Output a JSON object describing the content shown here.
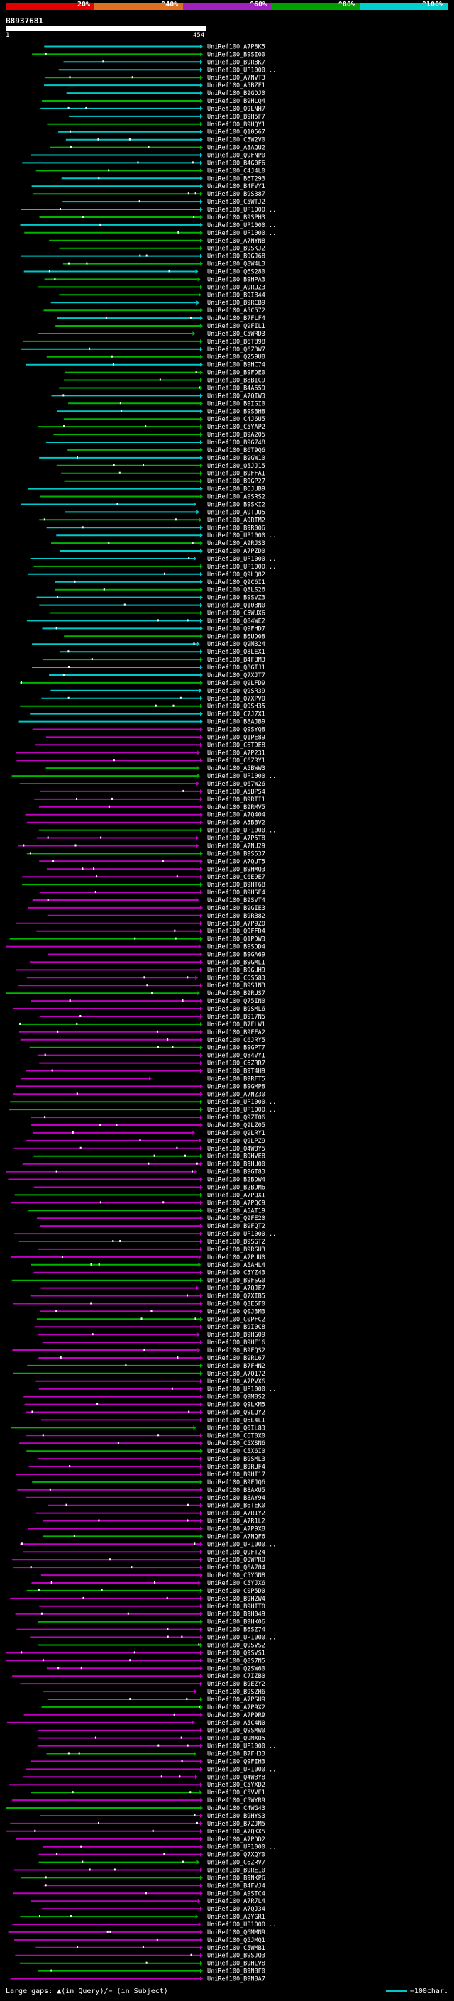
{
  "scale": {
    "labels": [
      "20%",
      "^40%",
      "^60%",
      "^80%",
      "^100%"
    ],
    "colors": [
      "#e00000",
      "#e07020",
      "#a020c0",
      "#00a000",
      "#00d0d0"
    ]
  },
  "query": {
    "id": "B8937681",
    "start": "1",
    "end": "454"
  },
  "footer": {
    "left": "Large gaps: ▲(in Query)/− (in Subject)",
    "right": "=100char."
  },
  "colors": {
    "cyan": "#00c8c8",
    "green": "#00b400",
    "magenta": "#c000c0",
    "background": "#000000",
    "text": "#ffffff"
  },
  "hits": [
    "UniRef100_A7P8K5",
    "UniRef100_B9SI00",
    "UniRef100_B9R8K7",
    "UniRef100_UP1000...",
    "UniRef100_A7NVT3",
    "UniRef100_A5BZF1",
    "UniRef100_B9GDJ0",
    "UniRef100_B9HLQ4",
    "UniRef100_Q9LNH7",
    "UniRef100_B9H5F7",
    "UniRef100_B9HQY1",
    "UniRef100_Q10567",
    "UniRef100_C5W2V0",
    "UniRef100_A3AQU2",
    "UniRef100_Q9FNP0",
    "UniRef100_B4G0F6",
    "UniRef100_C4J4L0",
    "UniRef100_B6T293",
    "UniRef100_B4FVY1",
    "UniRef100_B9S387",
    "UniRef100_C5WTJ2",
    "UniRef100_UP1000...",
    "UniRef100_B9SPH3",
    "UniRef100_UP1000...",
    "UniRef100_UP1000...",
    "UniRef100_A7NYN8",
    "UniRef100_B9SKJ2",
    "UniRef100_B9GJ68",
    "UniRef100_Q8W4L3",
    "UniRef100_Q6S280",
    "UniRef100_B9HPA3",
    "UniRef100_A9RUZ3",
    "UniRef100_B9IB44",
    "UniRef100_B9RCB9",
    "UniRef100_A5C572",
    "UniRef100_B7FLF4",
    "UniRef100_Q9FIL1",
    "UniRef100_C5WRD3",
    "UniRef100_B6T898",
    "UniRef100_Q6Z3W7",
    "UniRef100_Q259U8",
    "UniRef100_B9HC74",
    "UniRef100_B9FDE0",
    "UniRef100_B8BIC9",
    "UniRef100_B4A659",
    "UniRef100_A7QIW3",
    "UniRef100_B9IGI0",
    "UniRef100_B9SBH8",
    "UniRef100_C4J6U5",
    "UniRef100_C5YAP2",
    "UniRef100_B9A205",
    "UniRef100_B9G748",
    "UniRef100_B6T9Q6",
    "UniRef100_B9GW10",
    "UniRef100_Q5JJ15",
    "UniRef100_B9FFA1",
    "UniRef100_B9GP27",
    "UniRef100_B6JUB9",
    "UniRef100_A9SRS2",
    "UniRef100_B9SKI2",
    "UniRef100_A9TUU5",
    "UniRef100_A9RTM2",
    "UniRef100_B9R006",
    "UniRef100_UP1000...",
    "UniRef100_A9RJS3",
    "UniRef100_A7PZD0",
    "UniRef100_UP1000...",
    "UniRef100_UP1000...",
    "UniRef100_Q9LQ82",
    "UniRef100_Q9C6I1",
    "UniRef100_Q8LS26",
    "UniRef100_B9SVZ3",
    "UniRef100_Q10BN0",
    "UniRef100_C5WUX6",
    "UniRef100_Q84WE2",
    "UniRef100_Q9FHD7",
    "UniRef100_B6UD08",
    "UniRef100_Q9M324",
    "UniRef100_Q8LEX1",
    "UniRef100_B4FBM3",
    "UniRef100_Q8GTJ1",
    "UniRef100_Q7XJT7",
    "UniRef100_Q9LFD9",
    "UniRef100_Q9SR39",
    "UniRef100_Q7XPV0",
    "UniRef100_Q9SH35",
    "UniRef100_C7J7X1",
    "UniRef100_B8AJB9",
    "UniRef100_Q9SYQ8",
    "UniRef100_Q1PE89",
    "UniRef100_C6T9E8",
    "UniRef100_A7P231",
    "UniRef100_C6ZRY1",
    "UniRef100_A5BWW3",
    "UniRef100_UP1000...",
    "UniRef100_Q67W26",
    "UniRef100_A5BPS4",
    "UniRef100_B9RTI1",
    "UniRef100_B9RMV5",
    "UniRef100_A7Q404",
    "UniRef100_A5BBV2",
    "UniRef100_UP1000...",
    "UniRef100_A7P5T8",
    "UniRef100_A7NU29",
    "UniRef100_B9S537",
    "UniRef100_A7QUT5",
    "UniRef100_B9HMQ3",
    "UniRef100_C6E9E7",
    "UniRef100_B9HT68",
    "UniRef100_B9HSE4",
    "UniRef100_B9SVT4",
    "UniRef100_B9GIE3",
    "UniRef100_B9RB82",
    "UniRef100_A7P9Z0",
    "UniRef100_Q9FFD4",
    "UniRef100_Q1PDW3",
    "UniRef100_B9SDD4",
    "UniRef100_B9GA69",
    "UniRef100_B9GML1",
    "UniRef100_B9GUH9",
    "UniRef100_C6S583",
    "UniRef100_B9S1N3",
    "UniRef100_B9RUS7",
    "UniRef100_Q75IN0",
    "UniRef100_B9SML6",
    "UniRef100_B917N5",
    "UniRef100_B7FLW1",
    "UniRef100_B9FFA2",
    "UniRef100_C6JRY5",
    "UniRef100_B9GPT7",
    "UniRef100_Q84VY1",
    "UniRef100_C6ZRR7",
    "UniRef100_B9T4H9",
    "UniRef100_B9RFT5",
    "UniRef100_B9GMP8",
    "UniRef100_A7NZ30",
    "UniRef100_UP1000...",
    "UniRef100_UP1000...",
    "UniRef100_Q9ZT06",
    "UniRef100_Q9LZ05",
    "UniRef100_Q9LRY1",
    "UniRef100_Q9LPZ9",
    "UniRef100_Q4W8Y5",
    "UniRef100_B9HVE8",
    "UniRef100_B9HU00",
    "UniRef100_B9GT83",
    "UniRef100_B2BDW4",
    "UniRef100_B2BDM6",
    "UniRef100_A7PQX1",
    "UniRef100_A7PQC9",
    "UniRef100_A5AT19",
    "UniRef100_Q9FE20",
    "UniRef100_B9FQT2",
    "UniRef100_UP1000...",
    "UniRef100_B9SGT2",
    "UniRef100_B9RGU3",
    "UniRef100_A7PUU0",
    "UniRef100_A5AHL4",
    "UniRef100_C5YZ43",
    "UniRef100_B9FSG0",
    "UniRef100_A7QJE7",
    "UniRef100_Q7XIB5",
    "UniRef100_Q3E5F0",
    "UniRef100_Q0J3M3",
    "UniRef100_C0PFC2",
    "UniRef100_B9I0C8",
    "UniRef100_B9HG09",
    "UniRef100_B9HE16",
    "UniRef100_B9FQS2",
    "UniRef100_B9RL67",
    "UniRef100_B7FHN2",
    "UniRef100_A7Q172",
    "UniRef100_A7PVX6",
    "UniRef100_UP1000...",
    "UniRef100_Q9M8S2",
    "UniRef100_Q9LXM5",
    "UniRef100_Q9LQY2",
    "UniRef100_Q6L4L1",
    "UniRef100_Q0IL83",
    "UniRef100_C6T0X0",
    "UniRef100_C5XSN6",
    "UniRef100_C5X6I0",
    "UniRef100_B9SML3",
    "UniRef100_B9RUF4",
    "UniRef100_B9HI17",
    "UniRef100_B9FJQ6",
    "UniRef100_B8AXU5",
    "UniRef100_B8AY94",
    "UniRef100_B6TEK0",
    "UniRef100_A7R1Y2",
    "UniRef100_A7R1L2",
    "UniRef100_A7P9X8",
    "UniRef100_A7NQF6",
    "UniRef100_UP1000...",
    "UniRef100_Q9FT24",
    "UniRef100_Q0WPR0",
    "UniRef100_Q6A784",
    "UniRef100_C5YGN8",
    "UniRef100_C5YJX6",
    "UniRef100_C0P5D0",
    "UniRef100_B9HZW4",
    "UniRef100_B9HIT0",
    "UniRef100_B9H049",
    "UniRef100_B9HK06",
    "UniRef100_B6SZ74",
    "UniRef100_UP1000...",
    "UniRef100_Q9SVS2",
    "UniRef100_Q9SVS1",
    "UniRef100_Q8S7N5",
    "UniRef100_Q2SW60",
    "UniRef100_C7IZB0",
    "UniRef100_B9EZY2",
    "UniRef100_B9SZH6",
    "UniRef100_A7PSU9",
    "UniRef100_A7P9X2",
    "UniRef100_A7P9R9",
    "UniRef100_A5C4N0",
    "UniRef100_Q9SMW0",
    "UniRef100_Q9MXO5",
    "UniRef100_UP1000...",
    "UniRef100_B7FH33",
    "UniRef100_Q9FIH3",
    "UniRef100_UP1000...",
    "UniRef100_Q4WBY8",
    "UniRef100_C5YXD2",
    "UniRef100_C5VVE1",
    "UniRef100_C5WYR9",
    "UniRef100_C4WG43",
    "UniRef100_B9HYS3",
    "UniRef100_B7ZJM5",
    "UniRef100_A7QKX5",
    "UniRef100_A7PDD2",
    "UniRef100_UP1000...",
    "UniRef100_Q7XQY0",
    "UniRef100_C6ZRV7",
    "UniRef100_B9RE10",
    "UniRef100_B9NKP6",
    "UniRef100_B4FVJ4",
    "UniRef100_A9STC4",
    "UniRef100_A7R7L4",
    "UniRef100_A7QJ34",
    "UniRef100_A2YGR1",
    "UniRef100_UP1000...",
    "UniRef100_Q6MMN9",
    "UniRef100_Q5JMQ1",
    "UniRef100_C5WMB1",
    "UniRef100_B9SJQ3",
    "UniRef100_B9HLV8",
    "UniRef100_B9N8F0",
    "UniRef100_B9N8A7"
  ]
}
